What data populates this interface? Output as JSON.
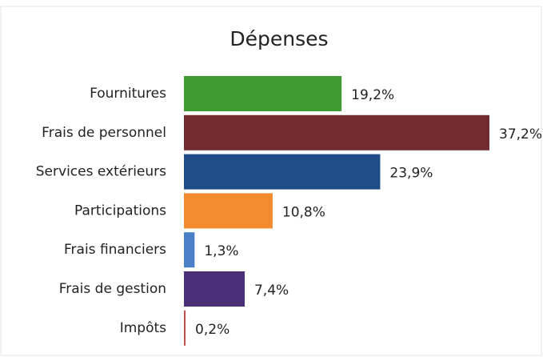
{
  "chart_data": {
    "type": "barh",
    "title": "Dépenses",
    "categories": [
      "Fournitures",
      "Frais de personnel",
      "Services extérieurs",
      "Participations",
      "Frais financiers",
      "Frais de gestion",
      "Impôts"
    ],
    "values": [
      19.2,
      37.2,
      23.9,
      10.8,
      1.3,
      7.4,
      0.2
    ],
    "value_labels": [
      "19,2%",
      "37,2%",
      "23,9%",
      "10,8%",
      "1,3%",
      "7,4%",
      "0,2%"
    ],
    "colors": [
      "#3f9b30",
      "#722b31",
      "#1f4c87",
      "#f28a2e",
      "#4a80c8",
      "#4a2e78",
      "#c0504d"
    ]
  }
}
